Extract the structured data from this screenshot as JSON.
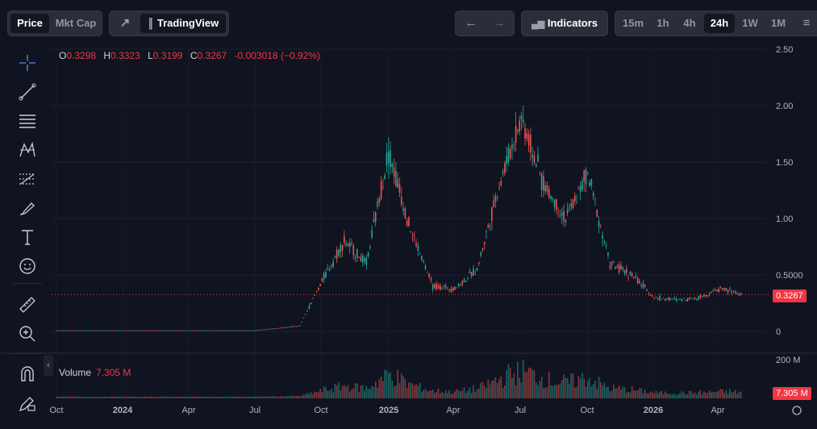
{
  "toolbar": {
    "price_label": "Price",
    "mktcap_label": "Mkt Cap",
    "tradingview_label": "TradingView",
    "indicators_label": "Indicators",
    "intervals": [
      "15m",
      "1h",
      "4h",
      "24h",
      "1W",
      "1M"
    ],
    "active_interval": "24h"
  },
  "legend": {
    "o_key": "O",
    "o": "0.3298",
    "h_key": "H",
    "h": "0.3323",
    "l_key": "L",
    "l": "0.3199",
    "c_key": "C",
    "c": "0.3267",
    "change": "-0.003018 (−0.92%)"
  },
  "volume_legend": {
    "label": "Volume",
    "value": "7.305 M"
  },
  "current_price_label": "0.3267",
  "current_volume_label": "7.305 M",
  "colors": {
    "up": "#26a69a",
    "down": "#ef5350",
    "price_tag": "#f23645",
    "background": "#0f1420"
  },
  "chart_data": {
    "type": "candlestick",
    "y_axis_ticks": [
      "2.50",
      "2.00",
      "1.50",
      "1.00",
      "0.5000",
      "0"
    ],
    "y_axis_values": [
      2.5,
      2.0,
      1.5,
      1.0,
      0.5,
      0
    ],
    "volume_axis_tick": "200 M",
    "x_axis_ticks": [
      "Oct",
      "2024",
      "Apr",
      "Jul",
      "Oct",
      "2025",
      "Apr",
      "Jul",
      "Oct",
      "2026",
      "Apr"
    ],
    "ylim": [
      0,
      2.5
    ],
    "current_price": 0.3267,
    "series_close": [
      {
        "date": "2023-10",
        "close": 0.01
      },
      {
        "date": "2024-01",
        "close": 0.01
      },
      {
        "date": "2024-04",
        "close": 0.01
      },
      {
        "date": "2024-07",
        "close": 0.01
      },
      {
        "date": "2024-09",
        "close": 0.05
      },
      {
        "date": "2024-10",
        "close": 0.45
      },
      {
        "date": "2024-11",
        "close": 0.8
      },
      {
        "date": "2024-12",
        "close": 0.6
      },
      {
        "date": "2025-01",
        "close": 1.6
      },
      {
        "date": "2025-02",
        "close": 0.9
      },
      {
        "date": "2025-03",
        "close": 0.4
      },
      {
        "date": "2025-04",
        "close": 0.38
      },
      {
        "date": "2025-05",
        "close": 0.55
      },
      {
        "date": "2025-06",
        "close": 1.3
      },
      {
        "date": "2025-07",
        "close": 1.9
      },
      {
        "date": "2025-08",
        "close": 1.3
      },
      {
        "date": "2025-09",
        "close": 1.0
      },
      {
        "date": "2025-10",
        "close": 1.4
      },
      {
        "date": "2025-11",
        "close": 0.6
      },
      {
        "date": "2025-12",
        "close": 0.5
      },
      {
        "date": "2026-01",
        "close": 0.3
      },
      {
        "date": "2026-02",
        "close": 0.28
      },
      {
        "date": "2026-03",
        "close": 0.3
      },
      {
        "date": "2026-04",
        "close": 0.38
      },
      {
        "date": "2026-05",
        "close": 0.3267
      }
    ]
  }
}
